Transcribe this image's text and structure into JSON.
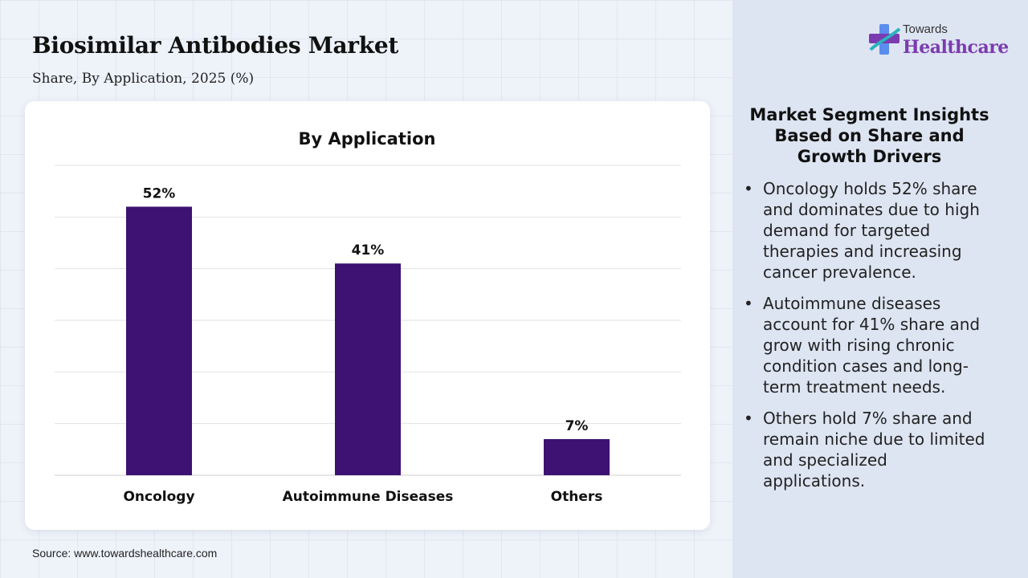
{
  "header": {
    "title": "Biosimilar Antibodies Market",
    "subtitle": "Share, By Application, 2025 (%)"
  },
  "logo": {
    "line1": "Towards",
    "line2": "Healthcare",
    "mark_colors": [
      "#5b8def",
      "#7b3bb0",
      "#2bb3c0"
    ]
  },
  "chart_data": {
    "type": "bar",
    "title": "By Application",
    "categories": [
      "Oncology",
      "Autoimmune Diseases",
      "Others"
    ],
    "values": [
      52,
      41,
      7
    ],
    "value_labels": [
      "52%",
      "41%",
      "7%"
    ],
    "ylim": [
      0,
      60
    ],
    "grid": true,
    "xlabel": "",
    "ylabel": "",
    "bar_color": "#3d1273"
  },
  "source": "Source: www.towardshealthcare.com",
  "insights": {
    "title": "Market Segment Insights Based on Share and Growth Drivers",
    "bullet": "•",
    "items": [
      "Oncology holds 52% share and dominates due to high demand for targeted therapies and increasing cancer prevalence.",
      "Autoimmune diseases account for 41% share and grow with rising chronic condition cases and long-term treatment needs.",
      "Others hold 7% share and remain niche due to limited and specialized applications."
    ]
  }
}
